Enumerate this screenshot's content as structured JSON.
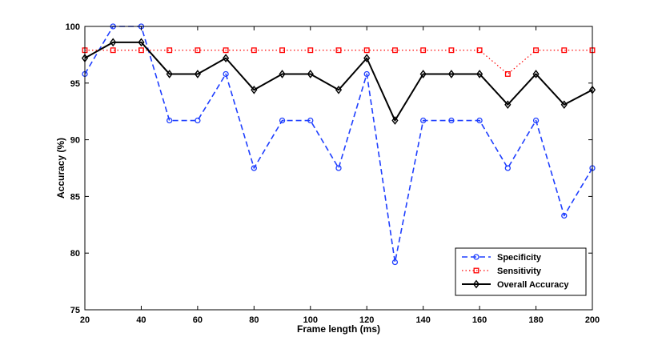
{
  "chart_data": {
    "type": "line",
    "title": "",
    "xlabel": "Frame length (ms)",
    "ylabel": "Accuracy (%)",
    "xlim": [
      20,
      200
    ],
    "ylim": [
      75,
      100
    ],
    "xticks": [
      20,
      40,
      60,
      80,
      100,
      120,
      140,
      160,
      180,
      200
    ],
    "yticks": [
      75,
      80,
      85,
      90,
      95,
      100
    ],
    "x": [
      20,
      30,
      40,
      50,
      60,
      70,
      80,
      90,
      100,
      110,
      120,
      130,
      140,
      150,
      160,
      170,
      180,
      190,
      200
    ],
    "grid": false,
    "legend_position": "bottom-right",
    "series": [
      {
        "name": "Specificity",
        "color": "#1f3fff",
        "line_style": "dashed",
        "marker": "circle",
        "values": [
          95.8,
          100,
          100,
          91.7,
          91.7,
          95.8,
          87.5,
          91.7,
          91.7,
          87.5,
          95.8,
          79.2,
          91.7,
          91.7,
          91.7,
          87.5,
          91.7,
          83.3,
          87.5
        ]
      },
      {
        "name": "Sensitivity",
        "color": "#ff0000",
        "line_style": "dotted",
        "marker": "square",
        "values": [
          97.9,
          97.9,
          97.9,
          97.9,
          97.9,
          97.9,
          97.9,
          97.9,
          97.9,
          97.9,
          97.9,
          97.9,
          97.9,
          97.9,
          97.9,
          95.8,
          97.9,
          97.9,
          97.9
        ]
      },
      {
        "name": "Overall Accuracy",
        "color": "#000000",
        "line_style": "solid",
        "marker": "diamond",
        "values": [
          97.2,
          98.6,
          98.6,
          95.8,
          95.8,
          97.2,
          94.4,
          95.8,
          95.8,
          94.4,
          97.2,
          91.7,
          95.8,
          95.8,
          95.8,
          93.1,
          95.8,
          93.1,
          94.4
        ]
      }
    ]
  }
}
